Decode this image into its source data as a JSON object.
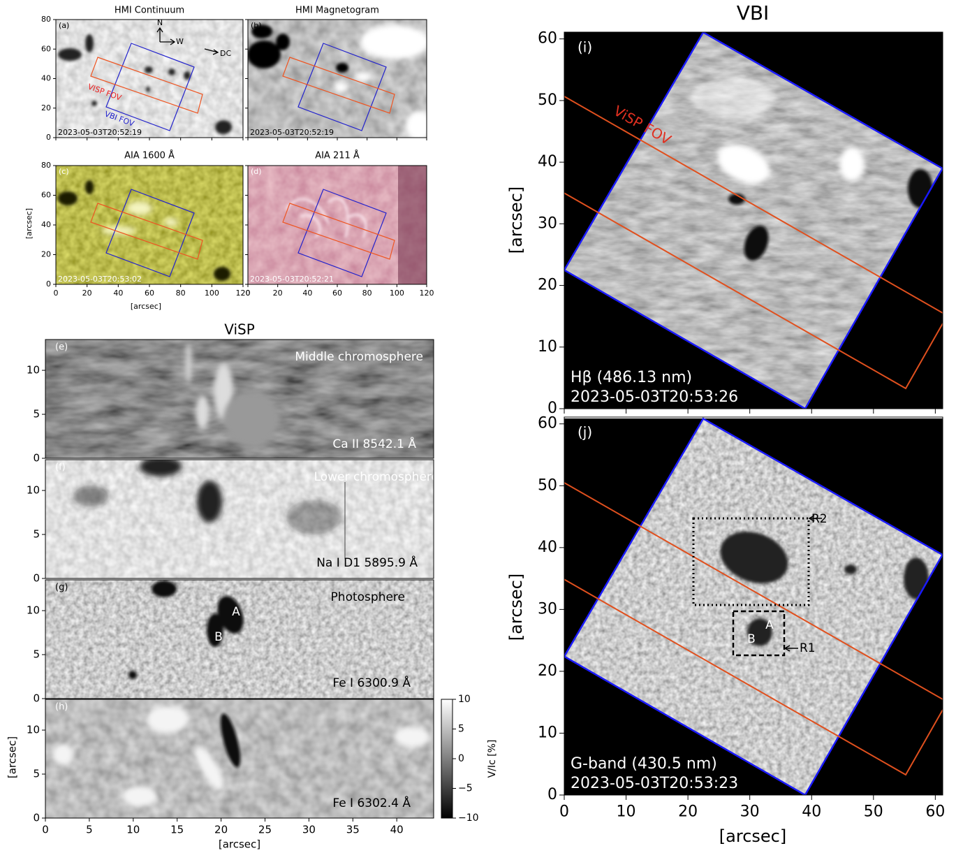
{
  "hmi_aia": {
    "xlabel": "[arcsec]",
    "ylabel": "[arcsec]",
    "xlim": [
      0,
      120
    ],
    "ylim": [
      0,
      80
    ],
    "xticks": [
      0,
      20,
      40,
      60,
      80,
      100,
      120
    ],
    "yticks": [
      0,
      20,
      40,
      60,
      80
    ],
    "panels": [
      {
        "letter": "(a)",
        "title": "HMI Continuum",
        "time": "2023-05-03T20:52:19"
      },
      {
        "letter": "(b)",
        "title": "HMI Magnetogram",
        "time": "2023-05-03T20:52:19"
      },
      {
        "letter": "(c)",
        "title": "AIA 1600 Å",
        "time": "2023-05-03T20:53:02"
      },
      {
        "letter": "(d)",
        "title": "AIA 211 Å",
        "time": "2023-05-03T20:52:21"
      }
    ],
    "compass": {
      "north": "N",
      "west": "W",
      "disk_center": "DC"
    },
    "fov_labels": {
      "visp": "VISP FOV",
      "vbi": "VBI FOV"
    }
  },
  "visp": {
    "title": "ViSP",
    "xlabel": "[arcsec]",
    "ylabel": "[arcsec]",
    "xlim": [
      0,
      44.2
    ],
    "ylim": [
      0,
      13.5
    ],
    "xticks": [
      0,
      5,
      10,
      15,
      20,
      25,
      30,
      35,
      40
    ],
    "yticks": [
      0,
      5,
      10
    ],
    "panels": [
      {
        "letter": "(e)",
        "layer": "Middle chromosphere",
        "line": "Ca II 8542.1 Å"
      },
      {
        "letter": "(f)",
        "layer": "Lower chromosphere",
        "line": "Na I D1 5895.9 Å"
      },
      {
        "letter": "(g)",
        "layer": "Photosphere",
        "line": "Fe I 6300.9 Å",
        "spots": [
          "A",
          "B"
        ]
      },
      {
        "letter": "(h)",
        "line": "Fe I 6302.4 Å"
      }
    ],
    "colorbar": {
      "label": "V/Ic [%]",
      "lim": [
        -10,
        10
      ],
      "ticks": [
        {
          "value": -10,
          "label": "−10"
        },
        {
          "value": -5,
          "label": "−5"
        },
        0,
        5,
        10
      ]
    }
  },
  "vbi": {
    "title": "VBI",
    "xlabel": "[arcsec]",
    "ylabel": "[arcsec]",
    "xlim": [
      0,
      61.2
    ],
    "ylim": [
      0,
      61.1
    ],
    "xticks": [
      0,
      10,
      20,
      30,
      40,
      50,
      60
    ],
    "yticks": [
      0,
      10,
      20,
      30,
      40,
      50,
      60
    ],
    "fov_label": "ViSP FOV",
    "panels": [
      {
        "letter": "(i)",
        "band": "Hβ (486.13 nm)",
        "time": "2023-05-03T20:53:26"
      },
      {
        "letter": "(j)",
        "band": "G-band (430.5 nm)",
        "time": "2023-05-03T20:53:23",
        "regions": [
          "R1",
          "R2"
        ],
        "spots": [
          "A",
          "B"
        ]
      }
    ]
  }
}
